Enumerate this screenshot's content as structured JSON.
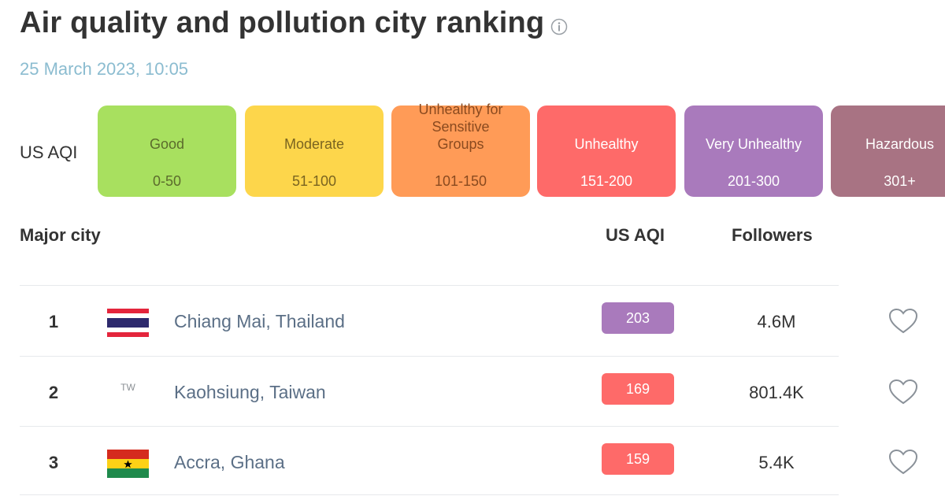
{
  "page": {
    "title": "Air quality and pollution city ranking",
    "timestamp": "25 March 2023, 10:05"
  },
  "legend": {
    "label": "US AQI",
    "levels": [
      {
        "name": "Good",
        "range": "0-50",
        "color": "#a8e05f",
        "text_color": "#5b6b2c"
      },
      {
        "name": "Moderate",
        "range": "51-100",
        "color": "#fdd64b",
        "text_color": "#7a6420"
      },
      {
        "name": "Unhealthy for Sensitive Groups",
        "range": "101-150",
        "color": "#ff9b57",
        "text_color": "#8a4a1f"
      },
      {
        "name": "Unhealthy",
        "range": "151-200",
        "color": "#fe6a69",
        "text_color": "#ffffff"
      },
      {
        "name": "Very Unhealthy",
        "range": "201-300",
        "color": "#a97abc",
        "text_color": "#ffffff"
      },
      {
        "name": "Hazardous",
        "range": "301+",
        "color": "#a87383",
        "text_color": "#ffffff"
      }
    ]
  },
  "table": {
    "headers": {
      "city": "Major city",
      "aqi": "US AQI",
      "followers": "Followers"
    },
    "rows": [
      {
        "rank": "1",
        "flag": "thailand-flag",
        "city": "Chiang Mai, Thailand",
        "aqi": "203",
        "aqi_color": "#a97abc",
        "followers": "4.6M"
      },
      {
        "rank": "2",
        "flag": "TW",
        "city": "Kaohsiung, Taiwan",
        "aqi": "169",
        "aqi_color": "#fe6a69",
        "followers": "801.4K"
      },
      {
        "rank": "3",
        "flag": "ghana-flag",
        "city": "Accra, Ghana",
        "aqi": "159",
        "aqi_color": "#fe6a69",
        "followers": "5.4K"
      }
    ]
  },
  "icons": {
    "info": "info-icon",
    "favorite": "heart-icon"
  }
}
